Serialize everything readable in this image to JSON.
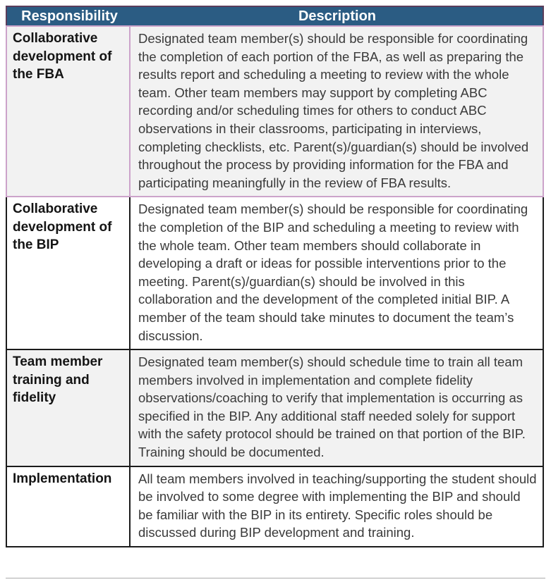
{
  "document": {
    "type": "responsibility-table",
    "colors": {
      "header_background": "#2B5C83",
      "header_text": "#FFFFFF",
      "header_border": "#5B3D5B",
      "first_row_border": "#CCA3CA",
      "grid_border": "#1C1C1C",
      "alt_row_background": "#F2F2F2",
      "body_text": "#3A3A3A",
      "responsibility_text": "#141414"
    },
    "table": {
      "headers": [
        {
          "label": "Responsibility"
        },
        {
          "label": "Description"
        }
      ],
      "rows": [
        {
          "responsibility": "Collaborative development of the FBA",
          "description": "Designated team member(s) should be responsible for coordinating the completion of each portion of the FBA, as well as preparing the results report and scheduling a meeting to review with the whole team. Other team members may support by completing ABC recording and/or scheduling times for others to conduct ABC observations in their classrooms, participating in interviews, completing checklists, etc. Parent(s)/guardian(s) should be involved throughout the process by providing information for the FBA and participating meaningfully in the review of FBA results."
        },
        {
          "responsibility": "Collaborative development of the BIP",
          "description": "Designated team member(s) should be responsible for coordinating the completion of the BIP and scheduling a meeting to review with the whole team. Other team members should collaborate in developing a draft or ideas for possible interventions prior to the meeting. Parent(s)/guardian(s) should be involved in this collaboration and the development of the completed initial BIP. A member of the team should take minutes to document the team’s discussion."
        },
        {
          "responsibility": "Team member training and fidelity",
          "description": "Designated team member(s) should schedule time to train all team members involved in implementation and complete fidelity observations/coaching to verify that implementation is occurring as specified in the BIP. Any additional staff needed solely for support with the safety protocol should be trained on that portion of the BIP.  Training should be documented."
        },
        {
          "responsibility": "Implementation",
          "description": "All team members involved in teaching/supporting the student should be involved to some degree with implementing the BIP and should be familiar with the BIP in its entirety. Specific roles should be discussed during BIP development and training."
        }
      ]
    }
  }
}
